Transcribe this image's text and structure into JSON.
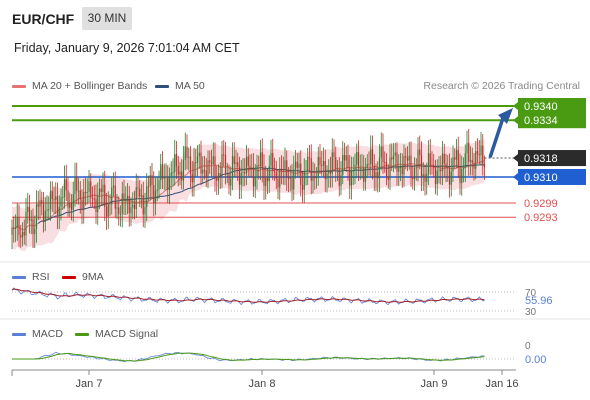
{
  "header": {
    "symbol": "EUR/CHF",
    "timeframe": "30 MIN",
    "datetime": "Friday, January 9, 2026 7:01:04 AM CET"
  },
  "legend": {
    "ma20": "MA 20 + Bollinger Bands",
    "ma50": "MA 50",
    "rsi": "RSI",
    "rsi_ma": "9MA",
    "macd": "MACD",
    "macd_signal": "MACD Signal"
  },
  "credit": "Research © 2026 Trading Central",
  "colors": {
    "bull": "#2e7d32",
    "bear": "#c62828",
    "ma20": "#e57373",
    "band": "#f7c9cf",
    "ma50": "#2c4f7c",
    "support": "#1f5fd1",
    "target": "#4a9a12",
    "resistance": "#e05050",
    "rsi": "#5a7fd6",
    "macd": "#5a7fd6",
    "signal": "#4a9a12",
    "arrow": "#2c5aa0"
  },
  "chart_data": {
    "type": "candlestick",
    "x_ticks": [
      "Jan 7",
      "Jan 8",
      "Jan 9",
      "Jan 16"
    ],
    "y_range": [
      0.928,
      0.9347
    ],
    "last_price": "0.9318",
    "levels": [
      {
        "value": 0.934,
        "label": "0.9340",
        "kind": "target"
      },
      {
        "value": 0.9334,
        "label": "0.9334",
        "kind": "target"
      },
      {
        "value": 0.931,
        "label": "0.9310",
        "kind": "support"
      },
      {
        "value": 0.9299,
        "label": "0.9299",
        "kind": "resistance"
      },
      {
        "value": 0.9293,
        "label": "0.9293",
        "kind": "resistance"
      }
    ],
    "close_anchors": [
      [
        0,
        0.9286
      ],
      [
        8,
        0.929
      ],
      [
        18,
        0.9297
      ],
      [
        28,
        0.9301
      ],
      [
        40,
        0.9303
      ],
      [
        52,
        0.9301
      ],
      [
        64,
        0.9298
      ],
      [
        76,
        0.9302
      ],
      [
        84,
        0.9308
      ],
      [
        92,
        0.9312
      ],
      [
        98,
        0.9316
      ],
      [
        106,
        0.9315
      ],
      [
        120,
        0.9313
      ],
      [
        140,
        0.9313
      ],
      [
        160,
        0.9311
      ],
      [
        180,
        0.9314
      ],
      [
        200,
        0.9314
      ],
      [
        220,
        0.9316
      ],
      [
        240,
        0.9313
      ],
      [
        256,
        0.9315
      ],
      [
        264,
        0.9319
      ],
      [
        270,
        0.9317
      ]
    ],
    "rsi": {
      "ticks": [
        "70",
        "30"
      ],
      "value": "55.96",
      "range": [
        30,
        70
      ]
    },
    "macd": {
      "ticks": [
        "0"
      ],
      "value": "0.00"
    }
  }
}
